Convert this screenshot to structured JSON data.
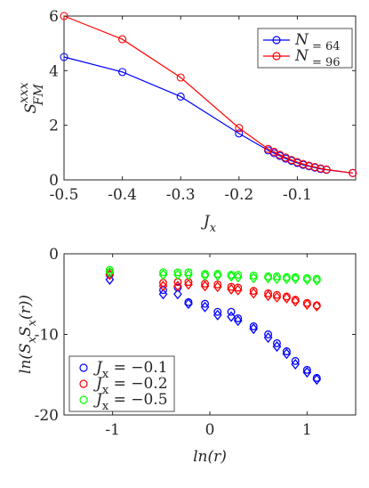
{
  "chart_data": [
    {
      "type": "line",
      "xlabel": [
        "J",
        "x"
      ],
      "ylabel": {
        "base": "S",
        "sup": "xxx",
        "sub": "FM"
      },
      "x": [
        -0.5,
        -0.4,
        -0.3,
        -0.2,
        -0.15,
        -0.14,
        -0.13,
        -0.12,
        -0.11,
        -0.1,
        -0.09,
        -0.08,
        -0.07,
        -0.06,
        -0.05,
        -0.005
      ],
      "series": [
        {
          "name": [
            "N",
            " = 64"
          ],
          "color": "#0000ff",
          "values": [
            4.5,
            3.95,
            3.05,
            1.7,
            1.08,
            0.98,
            0.88,
            0.78,
            0.7,
            0.62,
            0.55,
            0.5,
            0.45,
            0.4,
            0.37,
            0.25
          ]
        },
        {
          "name": [
            "N",
            " = 96"
          ],
          "color": "#ff0000",
          "values": [
            6.0,
            5.15,
            3.75,
            1.9,
            1.13,
            1.03,
            0.92,
            0.82,
            0.73,
            0.65,
            0.58,
            0.52,
            0.47,
            0.42,
            0.38,
            0.25
          ]
        }
      ],
      "xlim": [
        -0.5,
        0
      ],
      "xticks": [
        -0.5,
        -0.4,
        -0.3,
        -0.2,
        -0.1
      ],
      "ylim": [
        0,
        6
      ],
      "yticks": [
        0,
        2,
        4,
        6
      ],
      "legend": "upper-right"
    },
    {
      "type": "scatter",
      "xlabel": [
        "ln(r)"
      ],
      "ylabel": [
        "ln(S",
        "x",
        "S",
        "x",
        "(r))"
      ],
      "x": [
        -1.03,
        -0.48,
        -0.33,
        -0.22,
        -0.05,
        0.08,
        0.22,
        0.29,
        0.45,
        0.6,
        0.69,
        0.79,
        0.88,
        1.0,
        1.1
      ],
      "series": [
        {
          "name": [
            "J",
            "x",
            " = −0.1"
          ],
          "color": "#0000ff",
          "values": [
            -2.6,
            -4.5,
            -4.2,
            -6.0,
            -6.2,
            -7.2,
            -7.2,
            -8.0,
            -9.0,
            -10.0,
            -11.1,
            -12.1,
            -13.3,
            -14.4,
            -15.4
          ],
          "diamond_values": [
            -3.2,
            -5.0,
            -5.0,
            -6.2,
            -6.6,
            -7.6,
            -7.8,
            -8.3,
            -9.3,
            -10.4,
            -11.5,
            -12.4,
            -13.7,
            -14.7,
            -15.6
          ]
        },
        {
          "name": [
            "J",
            "x",
            " = −0.2"
          ],
          "color": "#ff0000",
          "values": [
            -2.3,
            -3.6,
            -3.5,
            -3.5,
            -3.7,
            -3.8,
            -4.1,
            -4.2,
            -4.6,
            -4.9,
            -5.1,
            -5.3,
            -5.7,
            -6.1,
            -6.4
          ],
          "diamond_values": [
            -2.6,
            -4.0,
            -4.0,
            -3.8,
            -4.0,
            -4.1,
            -4.4,
            -4.5,
            -4.9,
            -5.2,
            -5.4,
            -5.5,
            -5.9,
            -6.3,
            -6.5
          ]
        },
        {
          "name": [
            "J",
            "x",
            " = −0.5"
          ],
          "color": "#00ff00",
          "values": [
            -2.0,
            -2.3,
            -2.3,
            -2.3,
            -2.5,
            -2.5,
            -2.6,
            -2.6,
            -2.7,
            -2.8,
            -2.8,
            -2.9,
            -2.9,
            -3.0,
            -3.1
          ],
          "diamond_values": [
            -2.3,
            -2.6,
            -2.6,
            -2.6,
            -2.7,
            -2.7,
            -2.8,
            -2.9,
            -3.0,
            -3.0,
            -3.1,
            -3.1,
            -3.1,
            -3.2,
            -3.3
          ]
        }
      ],
      "xlim": [
        -1.5,
        1.5
      ],
      "xticks": [
        -1,
        0,
        1
      ],
      "ylim": [
        -20,
        0
      ],
      "yticks": [
        -20,
        -10,
        0
      ],
      "legend": "lower-left"
    }
  ]
}
